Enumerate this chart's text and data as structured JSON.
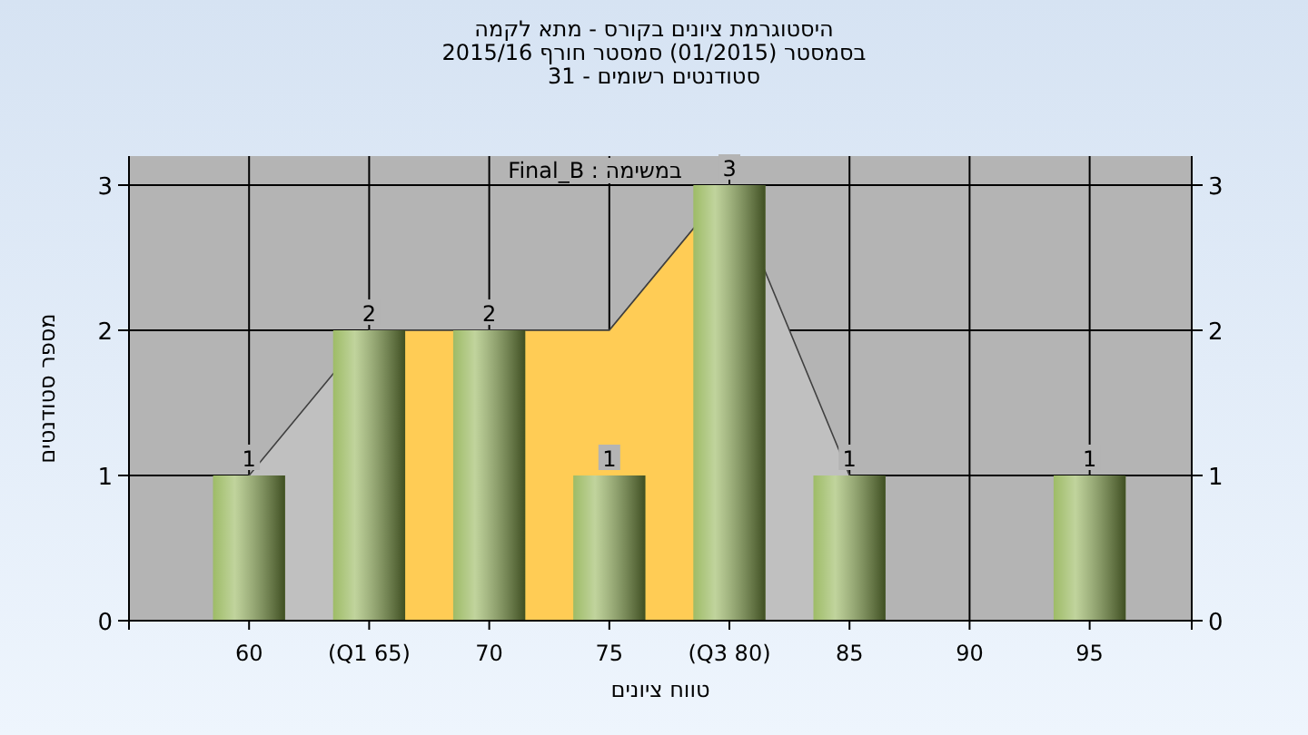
{
  "chart_data": {
    "type": "bar",
    "title": "היסטוגרמת ציונים בקורס - מתא לקמה",
    "subtitle": "בסמסטר (01/2015) סמסטר חורף 2015/16\nסטודנטים רשומים - 31",
    "xlabel": "טווח ציונים",
    "ylabel": "מספר סטודנטים",
    "annotations": [
      "במשימה : Final_B"
    ],
    "categories": [
      "60",
      "(Q1 65)",
      "70",
      "75",
      "(Q3 80)",
      "85",
      "90",
      "95"
    ],
    "series": [
      {
        "type": "area",
        "color": "#c0c0c0",
        "values": [
          1,
          2,
          2,
          2,
          3,
          1,
          null,
          null
        ]
      },
      {
        "type": "area",
        "color": "#ffcc55",
        "values": [
          null,
          2,
          2,
          2,
          3,
          null,
          null,
          null
        ]
      },
      {
        "color": "#8db04c",
        "values": [
          1,
          2,
          2,
          1,
          3,
          1,
          0,
          1
        ],
        "value_labels": [
          "1",
          "2",
          "2",
          "1",
          "3",
          "1",
          null,
          "1"
        ]
      }
    ],
    "ylim": [
      0,
      3.2
    ],
    "yticks": [
      0,
      1,
      2,
      3
    ],
    "y2lim": [
      0,
      3.2
    ],
    "y2ticks": [
      0,
      1,
      2,
      3
    ],
    "grid": true
  }
}
